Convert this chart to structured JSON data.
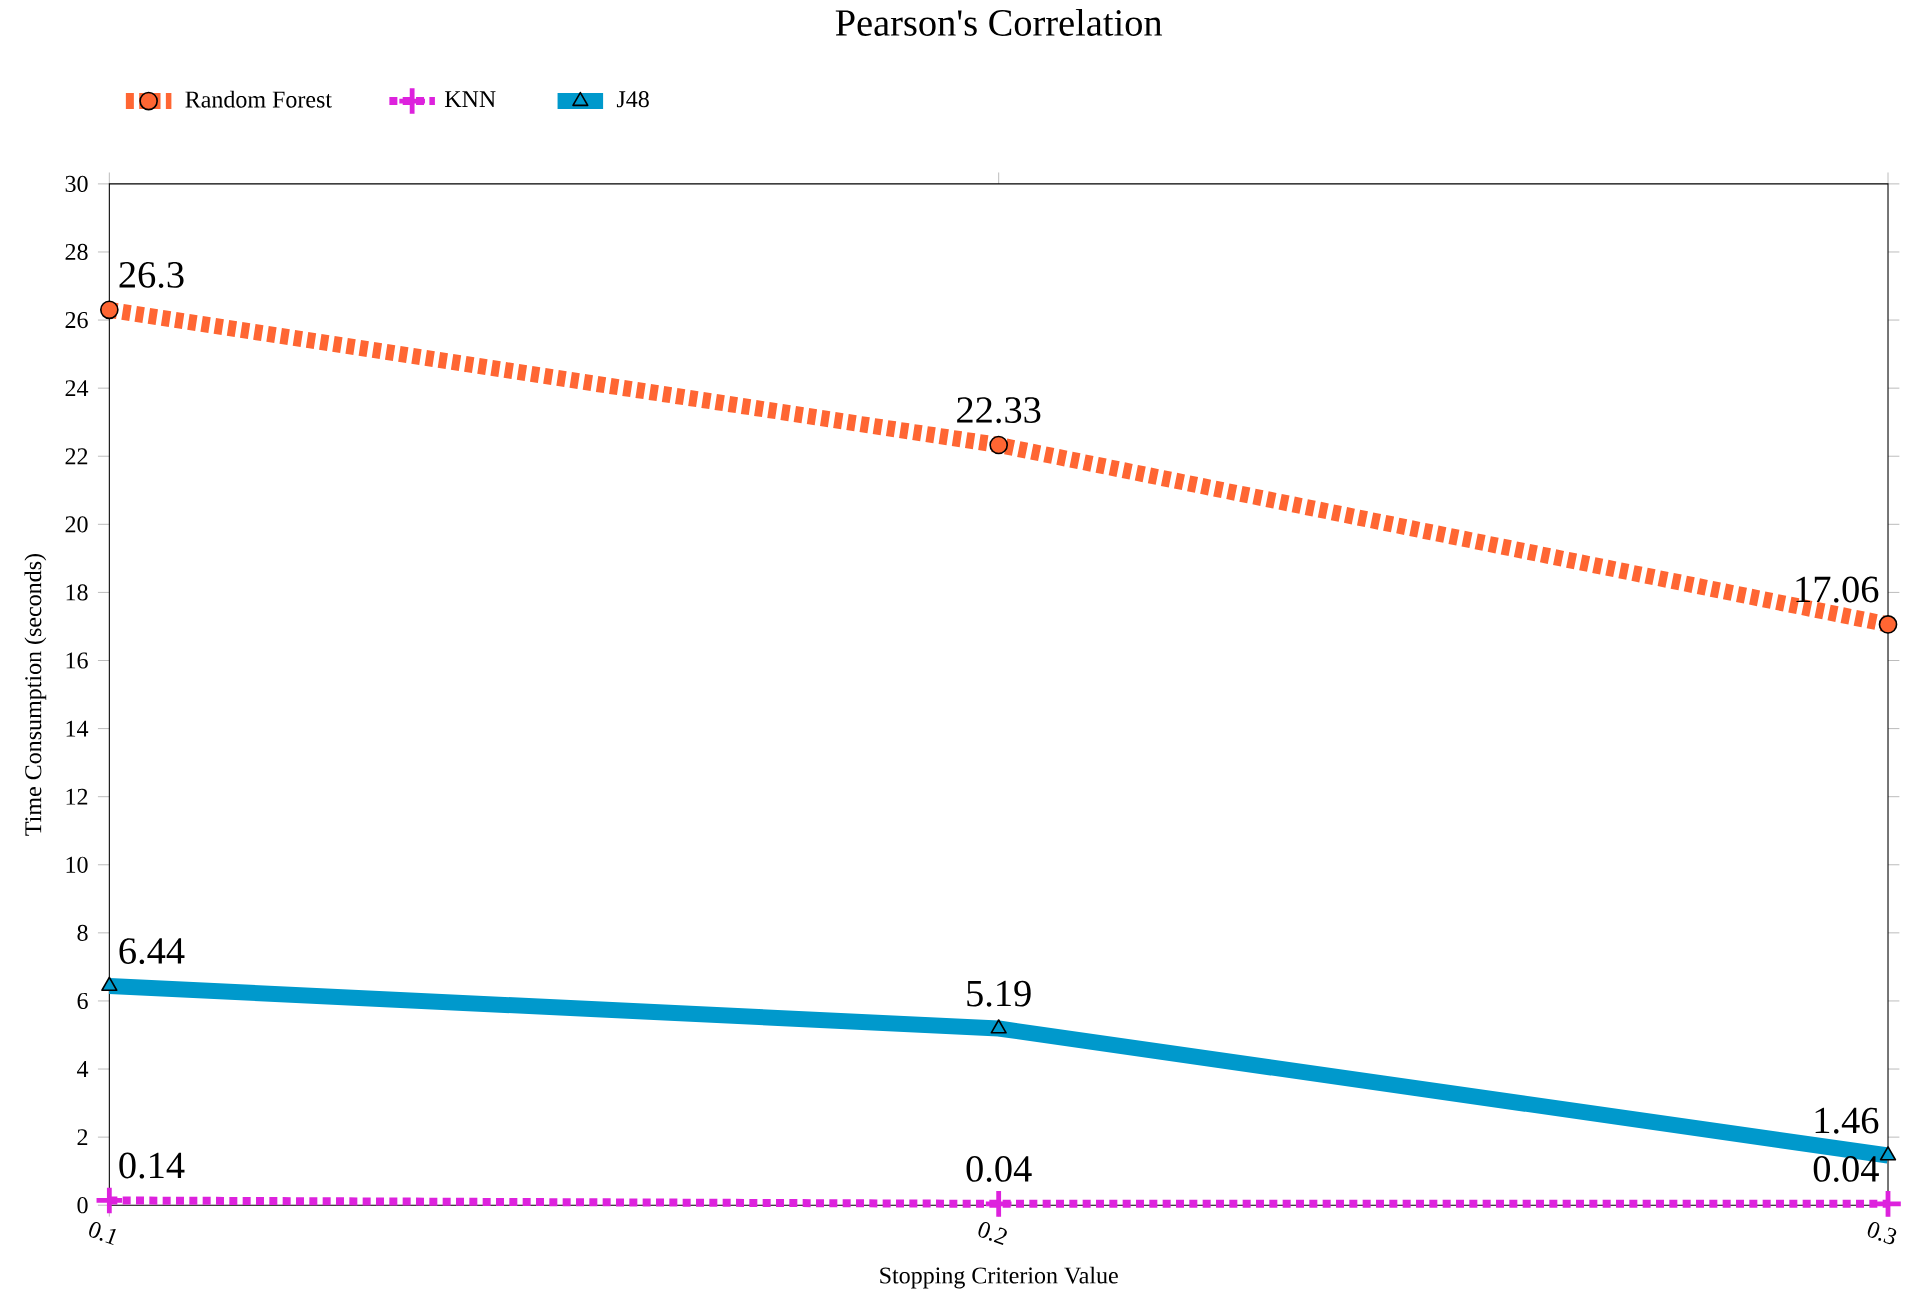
{
  "chart_data": {
    "type": "line",
    "title": "Pearson's Correlation",
    "xlabel": "Stopping Criterion Value",
    "ylabel": "Time Consumption (seconds)",
    "x": [
      0.1,
      0.2,
      0.3
    ],
    "series": [
      {
        "name": "Random Forest",
        "color": "#ff6633",
        "values": [
          26.3,
          22.33,
          17.06
        ],
        "marker": "circle",
        "line_style": "dotted"
      },
      {
        "name": "KNN",
        "color": "#dd22dd",
        "values": [
          0.14,
          0.04,
          0.04
        ],
        "marker": "cross",
        "line_style": "dotted"
      },
      {
        "name": "J48",
        "color": "#0099cc",
        "values": [
          6.44,
          5.19,
          1.46
        ],
        "marker": "triangle",
        "line_style": "solid"
      }
    ],
    "xlim": [
      0.1,
      0.3
    ],
    "xticks": [
      0.1,
      0.2,
      0.3
    ],
    "ylim": [
      0,
      30
    ],
    "yticks": [
      0,
      2,
      4,
      6,
      8,
      10,
      12,
      14,
      16,
      18,
      20,
      22,
      24,
      26,
      28,
      30
    ],
    "data_labels": true,
    "legend": "top left",
    "grid": false
  }
}
